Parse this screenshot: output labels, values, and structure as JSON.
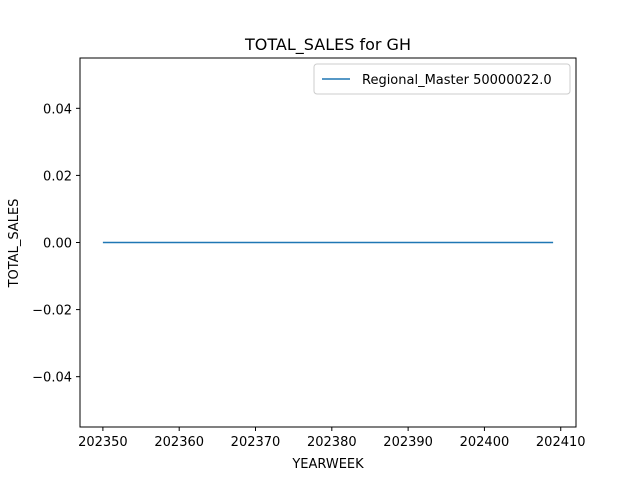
{
  "chart_data": {
    "type": "line",
    "title": "TOTAL_SALES for GH",
    "xlabel": "YEARWEEK",
    "ylabel": "TOTAL_SALES",
    "xlim": [
      202347,
      202412
    ],
    "ylim": [
      -0.055,
      0.055
    ],
    "xticks": [
      202350,
      202360,
      202370,
      202380,
      202390,
      202400,
      202410
    ],
    "xtick_labels": [
      "202350",
      "202360",
      "202370",
      "202380",
      "202390",
      "202400",
      "202410"
    ],
    "yticks": [
      0.04,
      0.02,
      0.0,
      -0.02,
      -0.04
    ],
    "ytick_labels": [
      "0.04",
      "0.02",
      "0.00",
      "−0.02",
      "−0.04"
    ],
    "grid": false,
    "legend_position": "top-right",
    "series": [
      {
        "name": "Regional_Master 50000022.0",
        "color": "#1f77b4",
        "x": [
          202350,
          202409
        ],
        "y": [
          0.0,
          0.0
        ]
      }
    ]
  }
}
